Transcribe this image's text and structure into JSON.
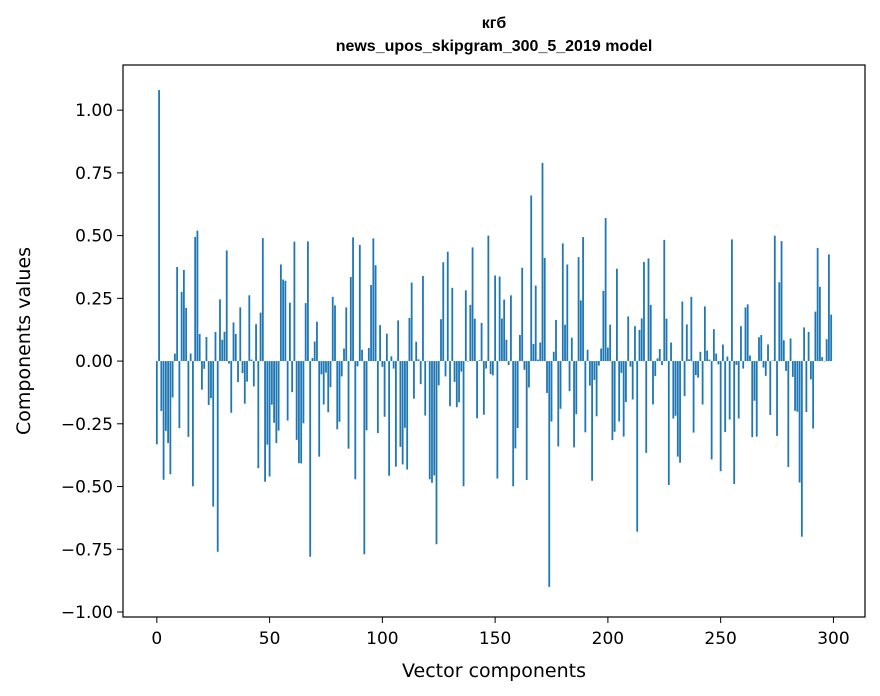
{
  "chart_data": {
    "type": "bar",
    "title": "кгб",
    "subtitle": "news_upos_skipgram_300_5_2019 model",
    "xlabel": "Vector components",
    "ylabel": "Components values",
    "xlim": [
      -15,
      314
    ],
    "ylim": [
      -1.02,
      1.18
    ],
    "xticks": [
      0,
      50,
      100,
      150,
      200,
      250,
      300
    ],
    "yticks": [
      1.0,
      0.75,
      0.5,
      0.25,
      0.0,
      -0.25,
      -0.5,
      -0.75,
      -1.0
    ],
    "ytick_labels": [
      "1.00",
      "0.75",
      "0.50",
      "0.25",
      "0.00",
      "−0.25",
      "−0.50",
      "−0.75",
      "−1.00"
    ],
    "bar_color": "#1f77b4",
    "series_generation": "300 components (indices 0–299); notable values read from the figure",
    "notable_values": [
      {
        "index": 1,
        "value": 1.08
      },
      {
        "index": 18,
        "value": 0.52
      },
      {
        "index": 25,
        "value": -0.58
      },
      {
        "index": 27,
        "value": -0.76
      },
      {
        "index": 47,
        "value": 0.49
      },
      {
        "index": 68,
        "value": -0.78
      },
      {
        "index": 92,
        "value": -0.77
      },
      {
        "index": 124,
        "value": -0.73
      },
      {
        "index": 166,
        "value": 0.66
      },
      {
        "index": 171,
        "value": 0.79
      },
      {
        "index": 174,
        "value": -0.9
      },
      {
        "index": 199,
        "value": 0.57
      },
      {
        "index": 213,
        "value": -0.68
      },
      {
        "index": 274,
        "value": 0.5
      },
      {
        "index": 286,
        "value": -0.7
      }
    ]
  }
}
